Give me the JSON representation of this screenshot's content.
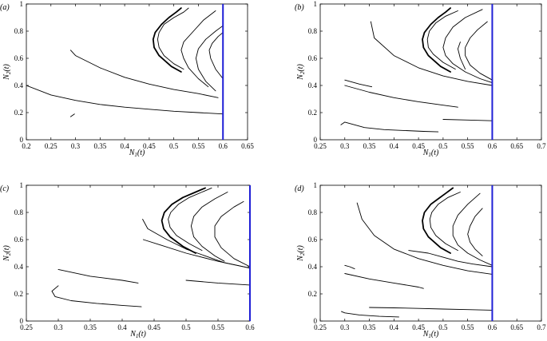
{
  "chart_data": [
    {
      "type": "line",
      "panel_label": "(a)",
      "xlabel": "N1(t)",
      "ylabel": "N2(t)",
      "xlim": [
        0.2,
        0.65
      ],
      "ylim": [
        0,
        1
      ],
      "xticks": [
        "0.2",
        "0.25",
        "0.3",
        "0.35",
        "0.4",
        "0.45",
        "0.5",
        "0.55",
        "0.6",
        "0.65"
      ],
      "yticks": [
        "0",
        "0.2",
        "0.4",
        "0.6",
        "0.8",
        "1"
      ],
      "vertical_line": {
        "x": 0.6,
        "color": "#1f1fd6"
      },
      "series": [
        {
          "x": [
            0.2,
            0.25,
            0.3,
            0.35,
            0.4,
            0.45,
            0.5,
            0.55,
            0.6
          ],
          "y": [
            0.4,
            0.33,
            0.29,
            0.26,
            0.24,
            0.225,
            0.21,
            0.2,
            0.19
          ],
          "width": 0.9
        },
        {
          "x": [
            0.29,
            0.3,
            0.35,
            0.4,
            0.45,
            0.5,
            0.55,
            0.59
          ],
          "y": [
            0.66,
            0.62,
            0.53,
            0.46,
            0.41,
            0.37,
            0.34,
            0.31
          ],
          "width": 0.9
        },
        {
          "x": [
            0.29,
            0.298
          ],
          "y": [
            0.17,
            0.19
          ],
          "width": 0.9
        },
        {
          "x": [
            0.515,
            0.495,
            0.47,
            0.46,
            0.458,
            0.462,
            0.475,
            0.49,
            0.505,
            0.515
          ],
          "y": [
            0.5,
            0.54,
            0.62,
            0.68,
            0.74,
            0.79,
            0.85,
            0.9,
            0.94,
            0.97
          ],
          "width": 1.8
        },
        {
          "x": [
            0.52,
            0.5,
            0.48,
            0.47,
            0.467,
            0.47,
            0.48,
            0.5,
            0.52,
            0.53
          ],
          "y": [
            0.52,
            0.56,
            0.62,
            0.68,
            0.74,
            0.79,
            0.85,
            0.9,
            0.94,
            0.97
          ],
          "width": 0.9
        },
        {
          "x": [
            0.57,
            0.55,
            0.53,
            0.52,
            0.515,
            0.52,
            0.54,
            0.56,
            0.585
          ],
          "y": [
            0.39,
            0.45,
            0.53,
            0.6,
            0.66,
            0.72,
            0.8,
            0.88,
            0.95
          ],
          "width": 0.9
        },
        {
          "x": [
            0.585,
            0.565,
            0.55,
            0.545,
            0.55,
            0.565,
            0.585,
            0.6
          ],
          "y": [
            0.36,
            0.43,
            0.52,
            0.6,
            0.67,
            0.74,
            0.8,
            0.84
          ],
          "width": 0.9
        },
        {
          "x": [
            0.6,
            0.585,
            0.575,
            0.572,
            0.578,
            0.59,
            0.6
          ],
          "y": [
            0.45,
            0.52,
            0.6,
            0.66,
            0.71,
            0.76,
            0.79
          ],
          "width": 0.9
        }
      ]
    },
    {
      "type": "line",
      "panel_label": "(b)",
      "xlabel": "N1(t)",
      "ylabel": "N2(t)",
      "xlim": [
        0.25,
        0.7
      ],
      "ylim": [
        0,
        1
      ],
      "xticks": [
        "0.25",
        "0.3",
        "0.35",
        "0.4",
        "0.45",
        "0.5",
        "0.55",
        "0.6",
        "0.65",
        "0.7"
      ],
      "yticks": [
        "0",
        "0.2",
        "0.4",
        "0.6",
        "0.8",
        "1"
      ],
      "vertical_line": {
        "x": 0.6,
        "color": "#1f1fd6"
      },
      "series": [
        {
          "x": [
            0.292,
            0.3,
            0.34,
            0.38,
            0.42,
            0.46,
            0.49
          ],
          "y": [
            0.11,
            0.13,
            0.09,
            0.075,
            0.068,
            0.062,
            0.058
          ],
          "width": 0.9
        },
        {
          "x": [
            0.5,
            0.55,
            0.6
          ],
          "y": [
            0.15,
            0.145,
            0.14
          ],
          "width": 0.9
        },
        {
          "x": [
            0.3,
            0.35,
            0.4,
            0.45,
            0.5,
            0.53
          ],
          "y": [
            0.4,
            0.35,
            0.31,
            0.28,
            0.255,
            0.24
          ],
          "width": 0.9
        },
        {
          "x": [
            0.3,
            0.33,
            0.355
          ],
          "y": [
            0.44,
            0.41,
            0.39
          ],
          "width": 0.9
        },
        {
          "x": [
            0.353,
            0.36,
            0.4,
            0.45,
            0.5,
            0.55,
            0.6
          ],
          "y": [
            0.87,
            0.75,
            0.62,
            0.53,
            0.47,
            0.43,
            0.4
          ],
          "width": 0.9
        },
        {
          "x": [
            0.515,
            0.495,
            0.47,
            0.46,
            0.458,
            0.462,
            0.475,
            0.49,
            0.505,
            0.515
          ],
          "y": [
            0.5,
            0.54,
            0.62,
            0.68,
            0.74,
            0.79,
            0.85,
            0.9,
            0.94,
            0.97
          ],
          "width": 1.8
        },
        {
          "x": [
            0.525,
            0.5,
            0.48,
            0.47,
            0.468,
            0.472,
            0.485,
            0.505,
            0.53
          ],
          "y": [
            0.52,
            0.57,
            0.63,
            0.68,
            0.74,
            0.8,
            0.86,
            0.91,
            0.95
          ],
          "width": 0.9
        },
        {
          "x": [
            0.6,
            0.575,
            0.545,
            0.52,
            0.505,
            0.5,
            0.505,
            0.52,
            0.545,
            0.58
          ],
          "y": [
            0.42,
            0.45,
            0.5,
            0.56,
            0.62,
            0.68,
            0.75,
            0.83,
            0.9,
            0.96
          ],
          "width": 0.9
        },
        {
          "x": [
            0.6,
            0.575,
            0.555,
            0.545,
            0.545,
            0.555,
            0.57,
            0.59
          ],
          "y": [
            0.44,
            0.49,
            0.55,
            0.62,
            0.68,
            0.75,
            0.81,
            0.87
          ],
          "width": 0.9
        },
        {
          "x": [
            0.545,
            0.535,
            0.53,
            0.535
          ],
          "y": [
            0.52,
            0.6,
            0.67,
            0.72
          ],
          "width": 0.9
        }
      ]
    },
    {
      "type": "line",
      "panel_label": "(c)",
      "xlabel": "N1(t)",
      "ylabel": "N2(t)",
      "xlim": [
        0.25,
        0.6
      ],
      "ylim": [
        0,
        1
      ],
      "xticks": [
        "0.25",
        "0.3",
        "0.35",
        "0.4",
        "0.45",
        "0.5",
        "0.55",
        "0.6"
      ],
      "yticks": [
        "0",
        "0.2",
        "0.4",
        "0.6",
        "0.8",
        "1"
      ],
      "vertical_line": {
        "x": 0.6,
        "color": "#1f1fd6"
      },
      "series": [
        {
          "x": [
            0.3,
            0.29,
            0.295,
            0.32,
            0.36,
            0.4,
            0.43
          ],
          "y": [
            0.26,
            0.22,
            0.18,
            0.15,
            0.13,
            0.115,
            0.105
          ],
          "width": 0.9
        },
        {
          "x": [
            0.3,
            0.35,
            0.4,
            0.425
          ],
          "y": [
            0.38,
            0.33,
            0.3,
            0.28
          ],
          "width": 0.9
        },
        {
          "x": [
            0.5,
            0.55,
            0.6
          ],
          "y": [
            0.3,
            0.28,
            0.265
          ],
          "width": 0.9
        },
        {
          "x": [
            0.432,
            0.44,
            0.47,
            0.5,
            0.53,
            0.56,
            0.6
          ],
          "y": [
            0.75,
            0.68,
            0.6,
            0.53,
            0.48,
            0.43,
            0.39
          ],
          "width": 0.9
        },
        {
          "x": [
            0.433,
            0.46,
            0.5,
            0.55,
            0.6
          ],
          "y": [
            0.6,
            0.56,
            0.5,
            0.44,
            0.39
          ],
          "width": 0.9
        },
        {
          "x": [
            0.515,
            0.495,
            0.475,
            0.465,
            0.462,
            0.466,
            0.478,
            0.495,
            0.515,
            0.53
          ],
          "y": [
            0.5,
            0.55,
            0.62,
            0.68,
            0.74,
            0.8,
            0.86,
            0.91,
            0.95,
            0.98
          ],
          "width": 1.8
        },
        {
          "x": [
            0.525,
            0.505,
            0.485,
            0.475,
            0.472,
            0.476,
            0.488,
            0.505,
            0.525,
            0.54
          ],
          "y": [
            0.52,
            0.57,
            0.63,
            0.69,
            0.75,
            0.8,
            0.86,
            0.91,
            0.95,
            0.98
          ],
          "width": 0.9
        },
        {
          "x": [
            0.56,
            0.545,
            0.525,
            0.512,
            0.508,
            0.512,
            0.525,
            0.545,
            0.565
          ],
          "y": [
            0.44,
            0.48,
            0.55,
            0.62,
            0.7,
            0.77,
            0.84,
            0.9,
            0.95
          ],
          "width": 0.9
        },
        {
          "x": [
            0.6,
            0.575,
            0.555,
            0.545,
            0.545,
            0.555,
            0.575,
            0.59
          ],
          "y": [
            0.4,
            0.46,
            0.54,
            0.62,
            0.7,
            0.77,
            0.84,
            0.88
          ],
          "width": 0.9
        }
      ]
    },
    {
      "type": "line",
      "panel_label": "(d)",
      "xlabel": "N1(t)",
      "ylabel": "N2(t)",
      "xlim": [
        0.25,
        0.7
      ],
      "ylim": [
        0,
        1
      ],
      "xticks": [
        "0.25",
        "0.3",
        "0.35",
        "0.4",
        "0.45",
        "0.5",
        "0.55",
        "0.6",
        "0.65",
        "0.7"
      ],
      "yticks": [
        "0",
        "0.2",
        "0.4",
        "0.6",
        "0.8",
        "1"
      ],
      "vertical_line": {
        "x": 0.6,
        "color": "#1f1fd6"
      },
      "series": [
        {
          "x": [
            0.293,
            0.3,
            0.33,
            0.37,
            0.41
          ],
          "y": [
            0.07,
            0.06,
            0.045,
            0.035,
            0.03
          ],
          "width": 0.9
        },
        {
          "x": [
            0.35,
            0.4,
            0.45,
            0.5,
            0.55,
            0.6
          ],
          "y": [
            0.1,
            0.097,
            0.093,
            0.088,
            0.084,
            0.08
          ],
          "width": 0.9
        },
        {
          "x": [
            0.3,
            0.31,
            0.32
          ],
          "y": [
            0.41,
            0.4,
            0.385
          ],
          "width": 0.9
        },
        {
          "x": [
            0.3,
            0.35,
            0.4,
            0.45,
            0.46
          ],
          "y": [
            0.35,
            0.31,
            0.28,
            0.25,
            0.24
          ],
          "width": 0.9
        },
        {
          "x": [
            0.325,
            0.335,
            0.36,
            0.4,
            0.45,
            0.5,
            0.55,
            0.6
          ],
          "y": [
            0.87,
            0.75,
            0.63,
            0.53,
            0.46,
            0.41,
            0.37,
            0.345
          ],
          "width": 0.9
        },
        {
          "x": [
            0.43,
            0.47,
            0.5,
            0.53,
            0.56,
            0.6
          ],
          "y": [
            0.52,
            0.5,
            0.47,
            0.44,
            0.42,
            0.4
          ],
          "width": 0.9
        },
        {
          "x": [
            0.515,
            0.495,
            0.47,
            0.46,
            0.458,
            0.462,
            0.475,
            0.49,
            0.505,
            0.52
          ],
          "y": [
            0.5,
            0.54,
            0.62,
            0.68,
            0.74,
            0.8,
            0.86,
            0.9,
            0.94,
            0.98
          ],
          "width": 1.8
        },
        {
          "x": [
            0.53,
            0.505,
            0.485,
            0.475,
            0.473,
            0.477,
            0.49,
            0.51,
            0.535
          ],
          "y": [
            0.52,
            0.57,
            0.63,
            0.69,
            0.75,
            0.8,
            0.86,
            0.91,
            0.95
          ],
          "width": 0.9
        },
        {
          "x": [
            0.6,
            0.575,
            0.55,
            0.53,
            0.52,
            0.52,
            0.53,
            0.55,
            0.575
          ],
          "y": [
            0.41,
            0.45,
            0.5,
            0.56,
            0.63,
            0.7,
            0.78,
            0.86,
            0.94
          ],
          "width": 0.9
        },
        {
          "x": [
            0.58,
            0.565,
            0.555,
            0.55,
            0.555,
            0.565,
            0.58
          ],
          "y": [
            0.48,
            0.53,
            0.58,
            0.64,
            0.7,
            0.77,
            0.83
          ],
          "width": 0.9
        }
      ]
    }
  ]
}
